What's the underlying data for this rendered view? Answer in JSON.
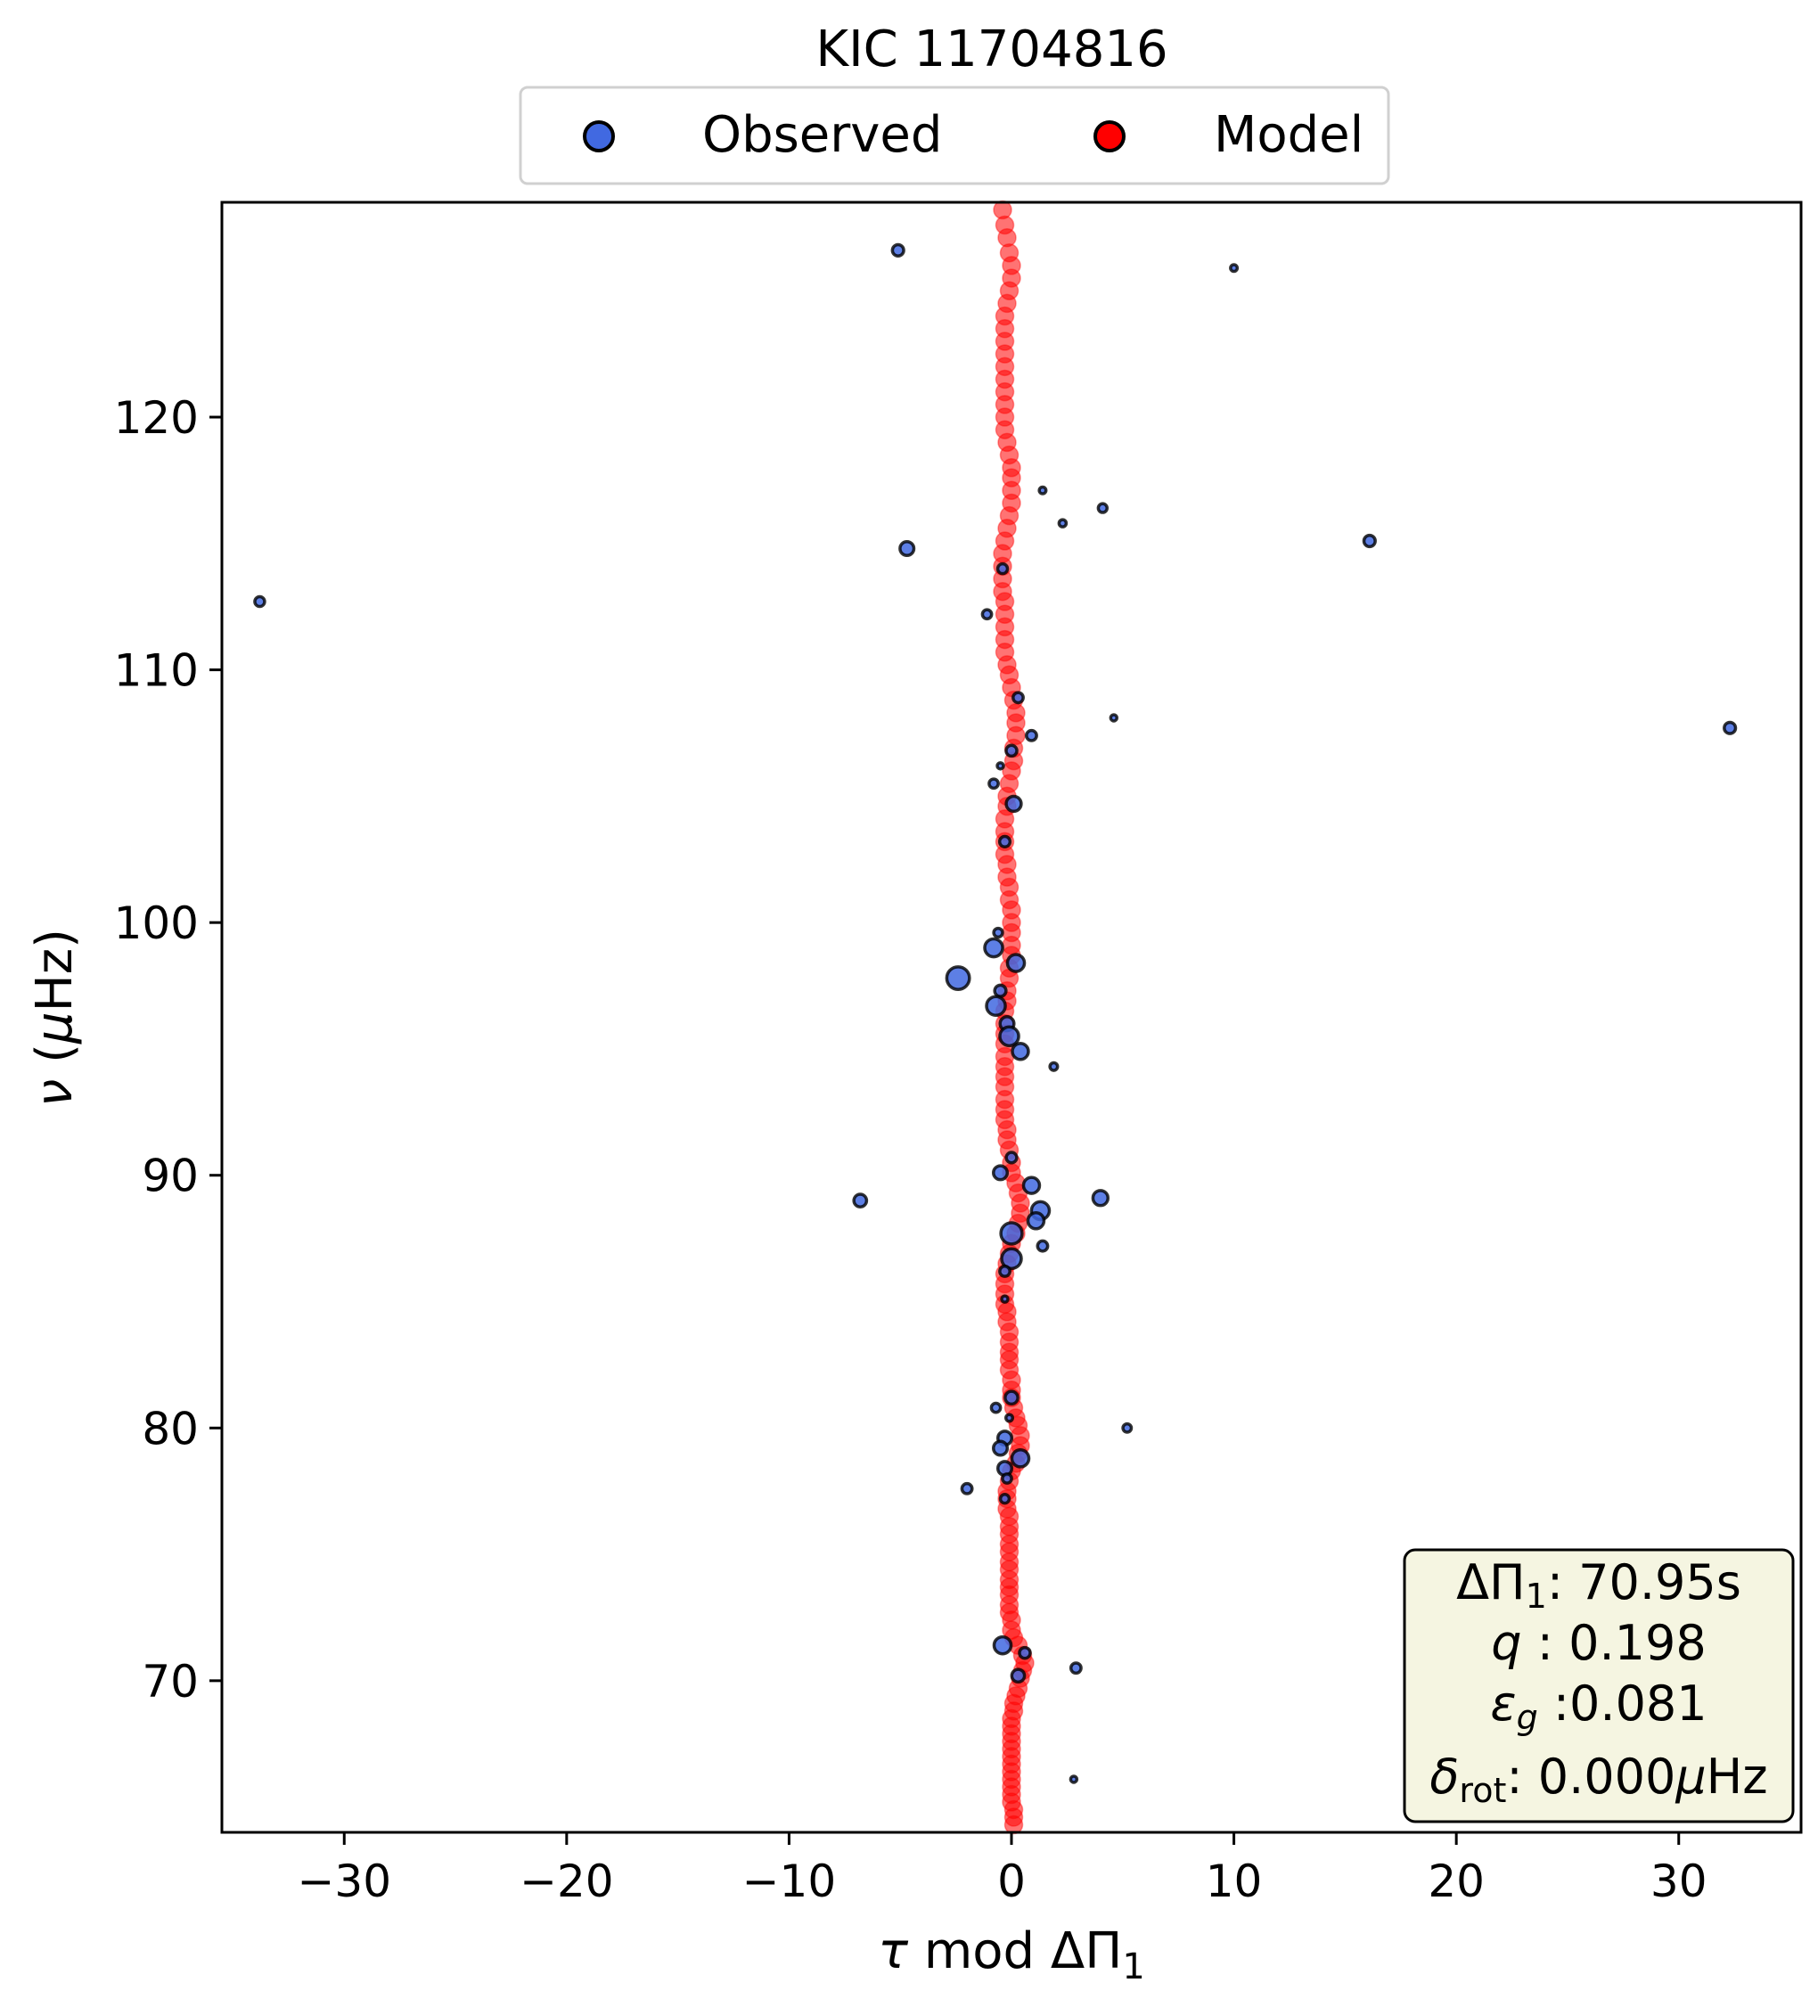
{
  "chart_data": {
    "type": "scatter",
    "title": "KIC 11704816",
    "xlabel": "τ mod ΔΠ₁",
    "ylabel": "ν (μHz)",
    "xlim": [
      -35.5,
      35.5
    ],
    "ylim": [
      64,
      128.5
    ],
    "xticks": [
      -30,
      -20,
      -10,
      0,
      10,
      20,
      30
    ],
    "xtick_labels": [
      "−30",
      "−20",
      "−10",
      "0",
      "10",
      "20",
      "30"
    ],
    "yticks": [
      70,
      80,
      90,
      100,
      110,
      120
    ],
    "ytick_labels": [
      "70",
      "80",
      "90",
      "100",
      "110",
      "120"
    ],
    "legend": {
      "placement": "top-center",
      "entries": [
        "Observed",
        "Model"
      ]
    },
    "colors": {
      "observed": "#4169e1",
      "model": "#ff0000"
    },
    "info_box": {
      "placement": "bottom-right",
      "line1": "ΔΠ₁: 70.95s",
      "line2": "q : 0.198",
      "line3": "εg :0.081",
      "line4": "δrot: 0.000μHz"
    },
    "series": [
      {
        "name": "Observed",
        "points": [
          {
            "x": -5.1,
            "y": 126.6,
            "s": 2
          },
          {
            "x": 10.0,
            "y": 125.9,
            "s": 0.7
          },
          {
            "x": 1.4,
            "y": 117.1,
            "s": 0.7
          },
          {
            "x": 4.1,
            "y": 116.4,
            "s": 1.2
          },
          {
            "x": 2.3,
            "y": 115.8,
            "s": 0.8
          },
          {
            "x": 16.1,
            "y": 115.1,
            "s": 2
          },
          {
            "x": -4.7,
            "y": 114.8,
            "s": 3
          },
          {
            "x": -0.4,
            "y": 114.0,
            "s": 1.5
          },
          {
            "x": -33.8,
            "y": 112.7,
            "s": 1.5
          },
          {
            "x": -1.1,
            "y": 112.2,
            "s": 1.3
          },
          {
            "x": 0.3,
            "y": 108.9,
            "s": 1.6
          },
          {
            "x": 4.6,
            "y": 108.1,
            "s": 0.6
          },
          {
            "x": 32.3,
            "y": 107.7,
            "s": 2
          },
          {
            "x": 0.9,
            "y": 107.4,
            "s": 1.6
          },
          {
            "x": 0.0,
            "y": 106.8,
            "s": 1.8
          },
          {
            "x": -0.5,
            "y": 106.2,
            "s": 0.6
          },
          {
            "x": -0.8,
            "y": 105.5,
            "s": 1.3
          },
          {
            "x": 0.1,
            "y": 104.7,
            "s": 3.5
          },
          {
            "x": -0.3,
            "y": 103.2,
            "s": 1.7
          },
          {
            "x": -0.6,
            "y": 99.6,
            "s": 1.2
          },
          {
            "x": -0.8,
            "y": 99.0,
            "s": 5
          },
          {
            "x": 0.2,
            "y": 98.4,
            "s": 4.5
          },
          {
            "x": -2.4,
            "y": 97.8,
            "s": 8
          },
          {
            "x": -0.5,
            "y": 97.3,
            "s": 2
          },
          {
            "x": -0.7,
            "y": 96.7,
            "s": 5.5
          },
          {
            "x": -0.2,
            "y": 96.0,
            "s": 3
          },
          {
            "x": -0.1,
            "y": 95.5,
            "s": 5.5
          },
          {
            "x": 0.4,
            "y": 94.9,
            "s": 4
          },
          {
            "x": 1.9,
            "y": 94.3,
            "s": 0.9
          },
          {
            "x": 0.0,
            "y": 90.7,
            "s": 1.7
          },
          {
            "x": -0.5,
            "y": 90.1,
            "s": 3
          },
          {
            "x": 0.9,
            "y": 89.6,
            "s": 4
          },
          {
            "x": -6.8,
            "y": 89.0,
            "s": 2.5
          },
          {
            "x": 4.0,
            "y": 89.1,
            "s": 3.5
          },
          {
            "x": 1.3,
            "y": 88.6,
            "s": 5
          },
          {
            "x": 1.1,
            "y": 88.2,
            "s": 4
          },
          {
            "x": 0.0,
            "y": 87.7,
            "s": 7
          },
          {
            "x": 1.4,
            "y": 87.2,
            "s": 1.6
          },
          {
            "x": 0.0,
            "y": 86.7,
            "s": 6
          },
          {
            "x": -0.3,
            "y": 86.2,
            "s": 1.6
          },
          {
            "x": -0.3,
            "y": 85.1,
            "s": 0.6
          },
          {
            "x": 0.0,
            "y": 81.2,
            "s": 2.5
          },
          {
            "x": -0.7,
            "y": 80.8,
            "s": 1.3
          },
          {
            "x": -0.1,
            "y": 80.4,
            "s": 0.7
          },
          {
            "x": 5.2,
            "y": 80.0,
            "s": 1.1
          },
          {
            "x": -0.3,
            "y": 79.6,
            "s": 3
          },
          {
            "x": -0.5,
            "y": 79.2,
            "s": 3
          },
          {
            "x": 0.4,
            "y": 78.8,
            "s": 4.5
          },
          {
            "x": -0.3,
            "y": 78.4,
            "s": 3
          },
          {
            "x": -0.2,
            "y": 78.0,
            "s": 1.3
          },
          {
            "x": -2.0,
            "y": 77.6,
            "s": 1.6
          },
          {
            "x": -0.3,
            "y": 77.2,
            "s": 1.2
          },
          {
            "x": -0.4,
            "y": 71.4,
            "s": 4.5
          },
          {
            "x": 0.6,
            "y": 71.1,
            "s": 1.8
          },
          {
            "x": 2.9,
            "y": 70.5,
            "s": 1.6
          },
          {
            "x": 0.3,
            "y": 70.2,
            "s": 2.5
          },
          {
            "x": 2.8,
            "y": 66.1,
            "s": 0.6
          }
        ]
      },
      {
        "name": "Model",
        "points": [
          {
            "x": -0.4,
            "y": 128.2
          },
          {
            "x": -0.3,
            "y": 127.6
          },
          {
            "x": -0.2,
            "y": 127.1
          },
          {
            "x": -0.1,
            "y": 126.5
          },
          {
            "x": 0.0,
            "y": 126.0
          },
          {
            "x": 0.0,
            "y": 125.5
          },
          {
            "x": -0.1,
            "y": 125.0
          },
          {
            "x": -0.2,
            "y": 124.5
          },
          {
            "x": -0.3,
            "y": 124.0
          },
          {
            "x": -0.3,
            "y": 123.5
          },
          {
            "x": -0.3,
            "y": 123.0
          },
          {
            "x": -0.3,
            "y": 122.5
          },
          {
            "x": -0.3,
            "y": 122.0
          },
          {
            "x": -0.3,
            "y": 121.5
          },
          {
            "x": -0.3,
            "y": 121.0
          },
          {
            "x": -0.3,
            "y": 120.5
          },
          {
            "x": -0.3,
            "y": 120.0
          },
          {
            "x": -0.3,
            "y": 119.5
          },
          {
            "x": -0.2,
            "y": 119.0
          },
          {
            "x": -0.1,
            "y": 118.5
          },
          {
            "x": 0.0,
            "y": 118.0
          },
          {
            "x": 0.0,
            "y": 117.6
          },
          {
            "x": 0.0,
            "y": 117.1
          },
          {
            "x": 0.0,
            "y": 116.6
          },
          {
            "x": -0.1,
            "y": 116.1
          },
          {
            "x": -0.2,
            "y": 115.6
          },
          {
            "x": -0.3,
            "y": 115.1
          },
          {
            "x": -0.4,
            "y": 114.6
          },
          {
            "x": -0.4,
            "y": 114.1
          },
          {
            "x": -0.4,
            "y": 113.6
          },
          {
            "x": -0.4,
            "y": 113.1
          },
          {
            "x": -0.3,
            "y": 112.7
          },
          {
            "x": -0.3,
            "y": 112.2
          },
          {
            "x": -0.3,
            "y": 111.7
          },
          {
            "x": -0.3,
            "y": 111.2
          },
          {
            "x": -0.3,
            "y": 110.7
          },
          {
            "x": -0.2,
            "y": 110.2
          },
          {
            "x": -0.1,
            "y": 109.8
          },
          {
            "x": 0.0,
            "y": 109.3
          },
          {
            "x": 0.1,
            "y": 108.8
          },
          {
            "x": 0.2,
            "y": 108.3
          },
          {
            "x": 0.2,
            "y": 107.9
          },
          {
            "x": 0.2,
            "y": 107.4
          },
          {
            "x": 0.1,
            "y": 106.9
          },
          {
            "x": 0.1,
            "y": 106.4
          },
          {
            "x": 0.0,
            "y": 106.0
          },
          {
            "x": -0.1,
            "y": 105.5
          },
          {
            "x": -0.2,
            "y": 105.0
          },
          {
            "x": -0.2,
            "y": 104.6
          },
          {
            "x": -0.3,
            "y": 104.1
          },
          {
            "x": -0.3,
            "y": 103.6
          },
          {
            "x": -0.3,
            "y": 103.2
          },
          {
            "x": -0.3,
            "y": 102.7
          },
          {
            "x": -0.2,
            "y": 102.3
          },
          {
            "x": -0.2,
            "y": 101.8
          },
          {
            "x": -0.1,
            "y": 101.4
          },
          {
            "x": -0.1,
            "y": 100.9
          },
          {
            "x": 0.0,
            "y": 100.5
          },
          {
            "x": 0.0,
            "y": 100.0
          },
          {
            "x": 0.0,
            "y": 99.6
          },
          {
            "x": 0.0,
            "y": 99.1
          },
          {
            "x": 0.0,
            "y": 98.7
          },
          {
            "x": -0.1,
            "y": 98.2
          },
          {
            "x": -0.1,
            "y": 97.8
          },
          {
            "x": -0.2,
            "y": 97.3
          },
          {
            "x": -0.2,
            "y": 96.9
          },
          {
            "x": -0.3,
            "y": 96.5
          },
          {
            "x": -0.3,
            "y": 96.0
          },
          {
            "x": -0.3,
            "y": 95.6
          },
          {
            "x": -0.3,
            "y": 95.2
          },
          {
            "x": -0.3,
            "y": 94.7
          },
          {
            "x": -0.3,
            "y": 94.3
          },
          {
            "x": -0.3,
            "y": 93.9
          },
          {
            "x": -0.3,
            "y": 93.5
          },
          {
            "x": -0.3,
            "y": 93.0
          },
          {
            "x": -0.3,
            "y": 92.6
          },
          {
            "x": -0.3,
            "y": 92.2
          },
          {
            "x": -0.2,
            "y": 91.8
          },
          {
            "x": -0.2,
            "y": 91.4
          },
          {
            "x": -0.1,
            "y": 91.0
          },
          {
            "x": 0.0,
            "y": 90.5
          },
          {
            "x": 0.0,
            "y": 90.1
          },
          {
            "x": 0.2,
            "y": 89.7
          },
          {
            "x": 0.3,
            "y": 89.3
          },
          {
            "x": 0.4,
            "y": 88.9
          },
          {
            "x": 0.4,
            "y": 88.5
          },
          {
            "x": 0.3,
            "y": 88.1
          },
          {
            "x": 0.2,
            "y": 87.7
          },
          {
            "x": 0.0,
            "y": 87.3
          },
          {
            "x": -0.1,
            "y": 86.9
          },
          {
            "x": -0.2,
            "y": 86.5
          },
          {
            "x": -0.3,
            "y": 86.1
          },
          {
            "x": -0.3,
            "y": 85.7
          },
          {
            "x": -0.3,
            "y": 85.3
          },
          {
            "x": -0.3,
            "y": 84.9
          },
          {
            "x": -0.2,
            "y": 84.6
          },
          {
            "x": -0.2,
            "y": 84.2
          },
          {
            "x": -0.1,
            "y": 83.8
          },
          {
            "x": -0.1,
            "y": 83.4
          },
          {
            "x": -0.1,
            "y": 83.0
          },
          {
            "x": -0.1,
            "y": 82.7
          },
          {
            "x": -0.1,
            "y": 82.3
          },
          {
            "x": 0.0,
            "y": 81.9
          },
          {
            "x": 0.0,
            "y": 81.5
          },
          {
            "x": 0.0,
            "y": 81.2
          },
          {
            "x": 0.1,
            "y": 80.8
          },
          {
            "x": 0.2,
            "y": 80.4
          },
          {
            "x": 0.3,
            "y": 80.1
          },
          {
            "x": 0.4,
            "y": 79.7
          },
          {
            "x": 0.4,
            "y": 79.3
          },
          {
            "x": 0.3,
            "y": 79.0
          },
          {
            "x": 0.2,
            "y": 78.6
          },
          {
            "x": 0.0,
            "y": 78.3
          },
          {
            "x": -0.1,
            "y": 77.9
          },
          {
            "x": -0.2,
            "y": 77.5
          },
          {
            "x": -0.2,
            "y": 77.2
          },
          {
            "x": -0.2,
            "y": 76.8
          },
          {
            "x": -0.1,
            "y": 76.5
          },
          {
            "x": -0.1,
            "y": 76.1
          },
          {
            "x": -0.1,
            "y": 75.8
          },
          {
            "x": -0.1,
            "y": 75.4
          },
          {
            "x": -0.1,
            "y": 75.1
          },
          {
            "x": -0.1,
            "y": 74.7
          },
          {
            "x": -0.1,
            "y": 74.4
          },
          {
            "x": -0.1,
            "y": 74.0
          },
          {
            "x": -0.1,
            "y": 73.7
          },
          {
            "x": -0.1,
            "y": 73.4
          },
          {
            "x": -0.1,
            "y": 73.0
          },
          {
            "x": -0.1,
            "y": 72.7
          },
          {
            "x": 0.0,
            "y": 72.4
          },
          {
            "x": 0.0,
            "y": 72.0
          },
          {
            "x": 0.1,
            "y": 71.7
          },
          {
            "x": 0.3,
            "y": 71.4
          },
          {
            "x": 0.5,
            "y": 71.0
          },
          {
            "x": 0.6,
            "y": 70.7
          },
          {
            "x": 0.5,
            "y": 70.4
          },
          {
            "x": 0.4,
            "y": 70.1
          },
          {
            "x": 0.3,
            "y": 69.7
          },
          {
            "x": 0.2,
            "y": 69.4
          },
          {
            "x": 0.1,
            "y": 69.1
          },
          {
            "x": 0.1,
            "y": 68.8
          },
          {
            "x": 0.0,
            "y": 68.5
          },
          {
            "x": 0.0,
            "y": 68.2
          },
          {
            "x": 0.0,
            "y": 67.9
          },
          {
            "x": 0.0,
            "y": 67.6
          },
          {
            "x": 0.0,
            "y": 67.3
          },
          {
            "x": 0.0,
            "y": 67.0
          },
          {
            "x": 0.0,
            "y": 66.7
          },
          {
            "x": 0.0,
            "y": 66.4
          },
          {
            "x": 0.0,
            "y": 66.1
          },
          {
            "x": 0.0,
            "y": 65.8
          },
          {
            "x": 0.0,
            "y": 65.5
          },
          {
            "x": 0.0,
            "y": 65.2
          },
          {
            "x": 0.1,
            "y": 64.9
          },
          {
            "x": 0.1,
            "y": 64.6
          },
          {
            "x": 0.1,
            "y": 64.3
          }
        ]
      }
    ]
  }
}
